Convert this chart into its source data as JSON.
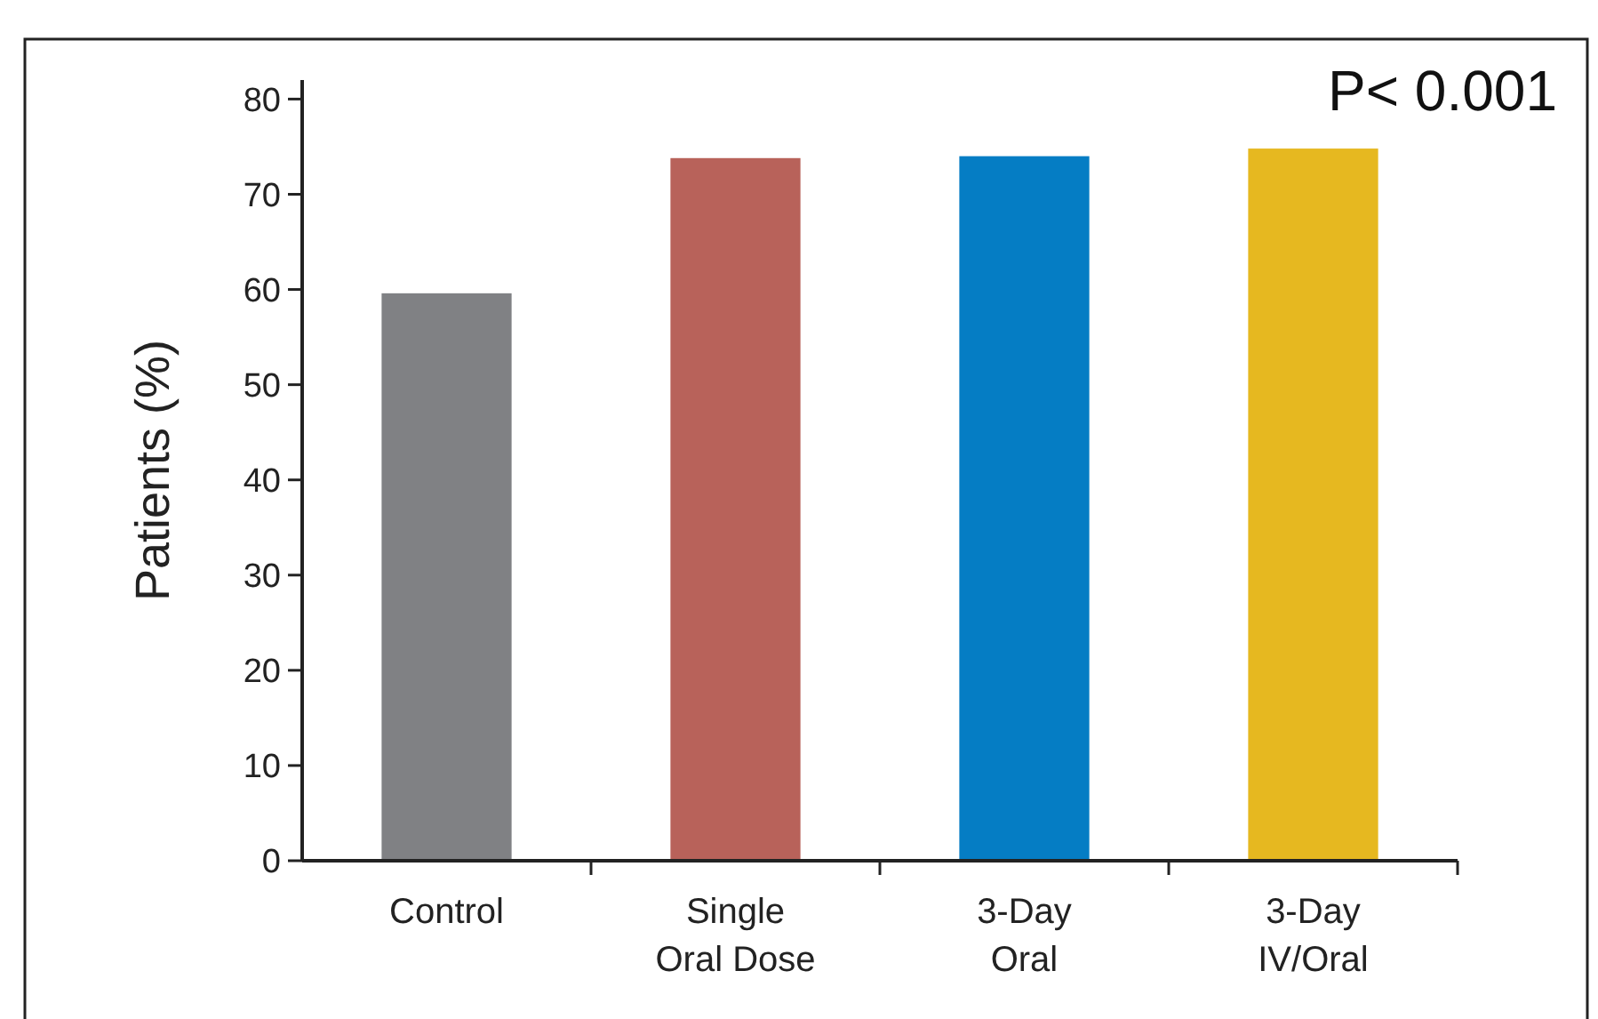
{
  "chart_data": {
    "type": "bar",
    "ylabel": "Patients (%)",
    "categories": [
      "Control",
      "Single\nOral Dose",
      "3-Day\nOral",
      "3-Day\nIV/Oral"
    ],
    "values": [
      59.6,
      73.8,
      74.0,
      74.8
    ],
    "colors": [
      "#808184",
      "#b8625a",
      "#057dc4",
      "#e6b820"
    ],
    "ylim": [
      0,
      82
    ],
    "yticks": [
      0,
      10,
      20,
      30,
      40,
      50,
      60,
      70,
      80
    ],
    "annotations": [
      "P< 0.001"
    ]
  }
}
